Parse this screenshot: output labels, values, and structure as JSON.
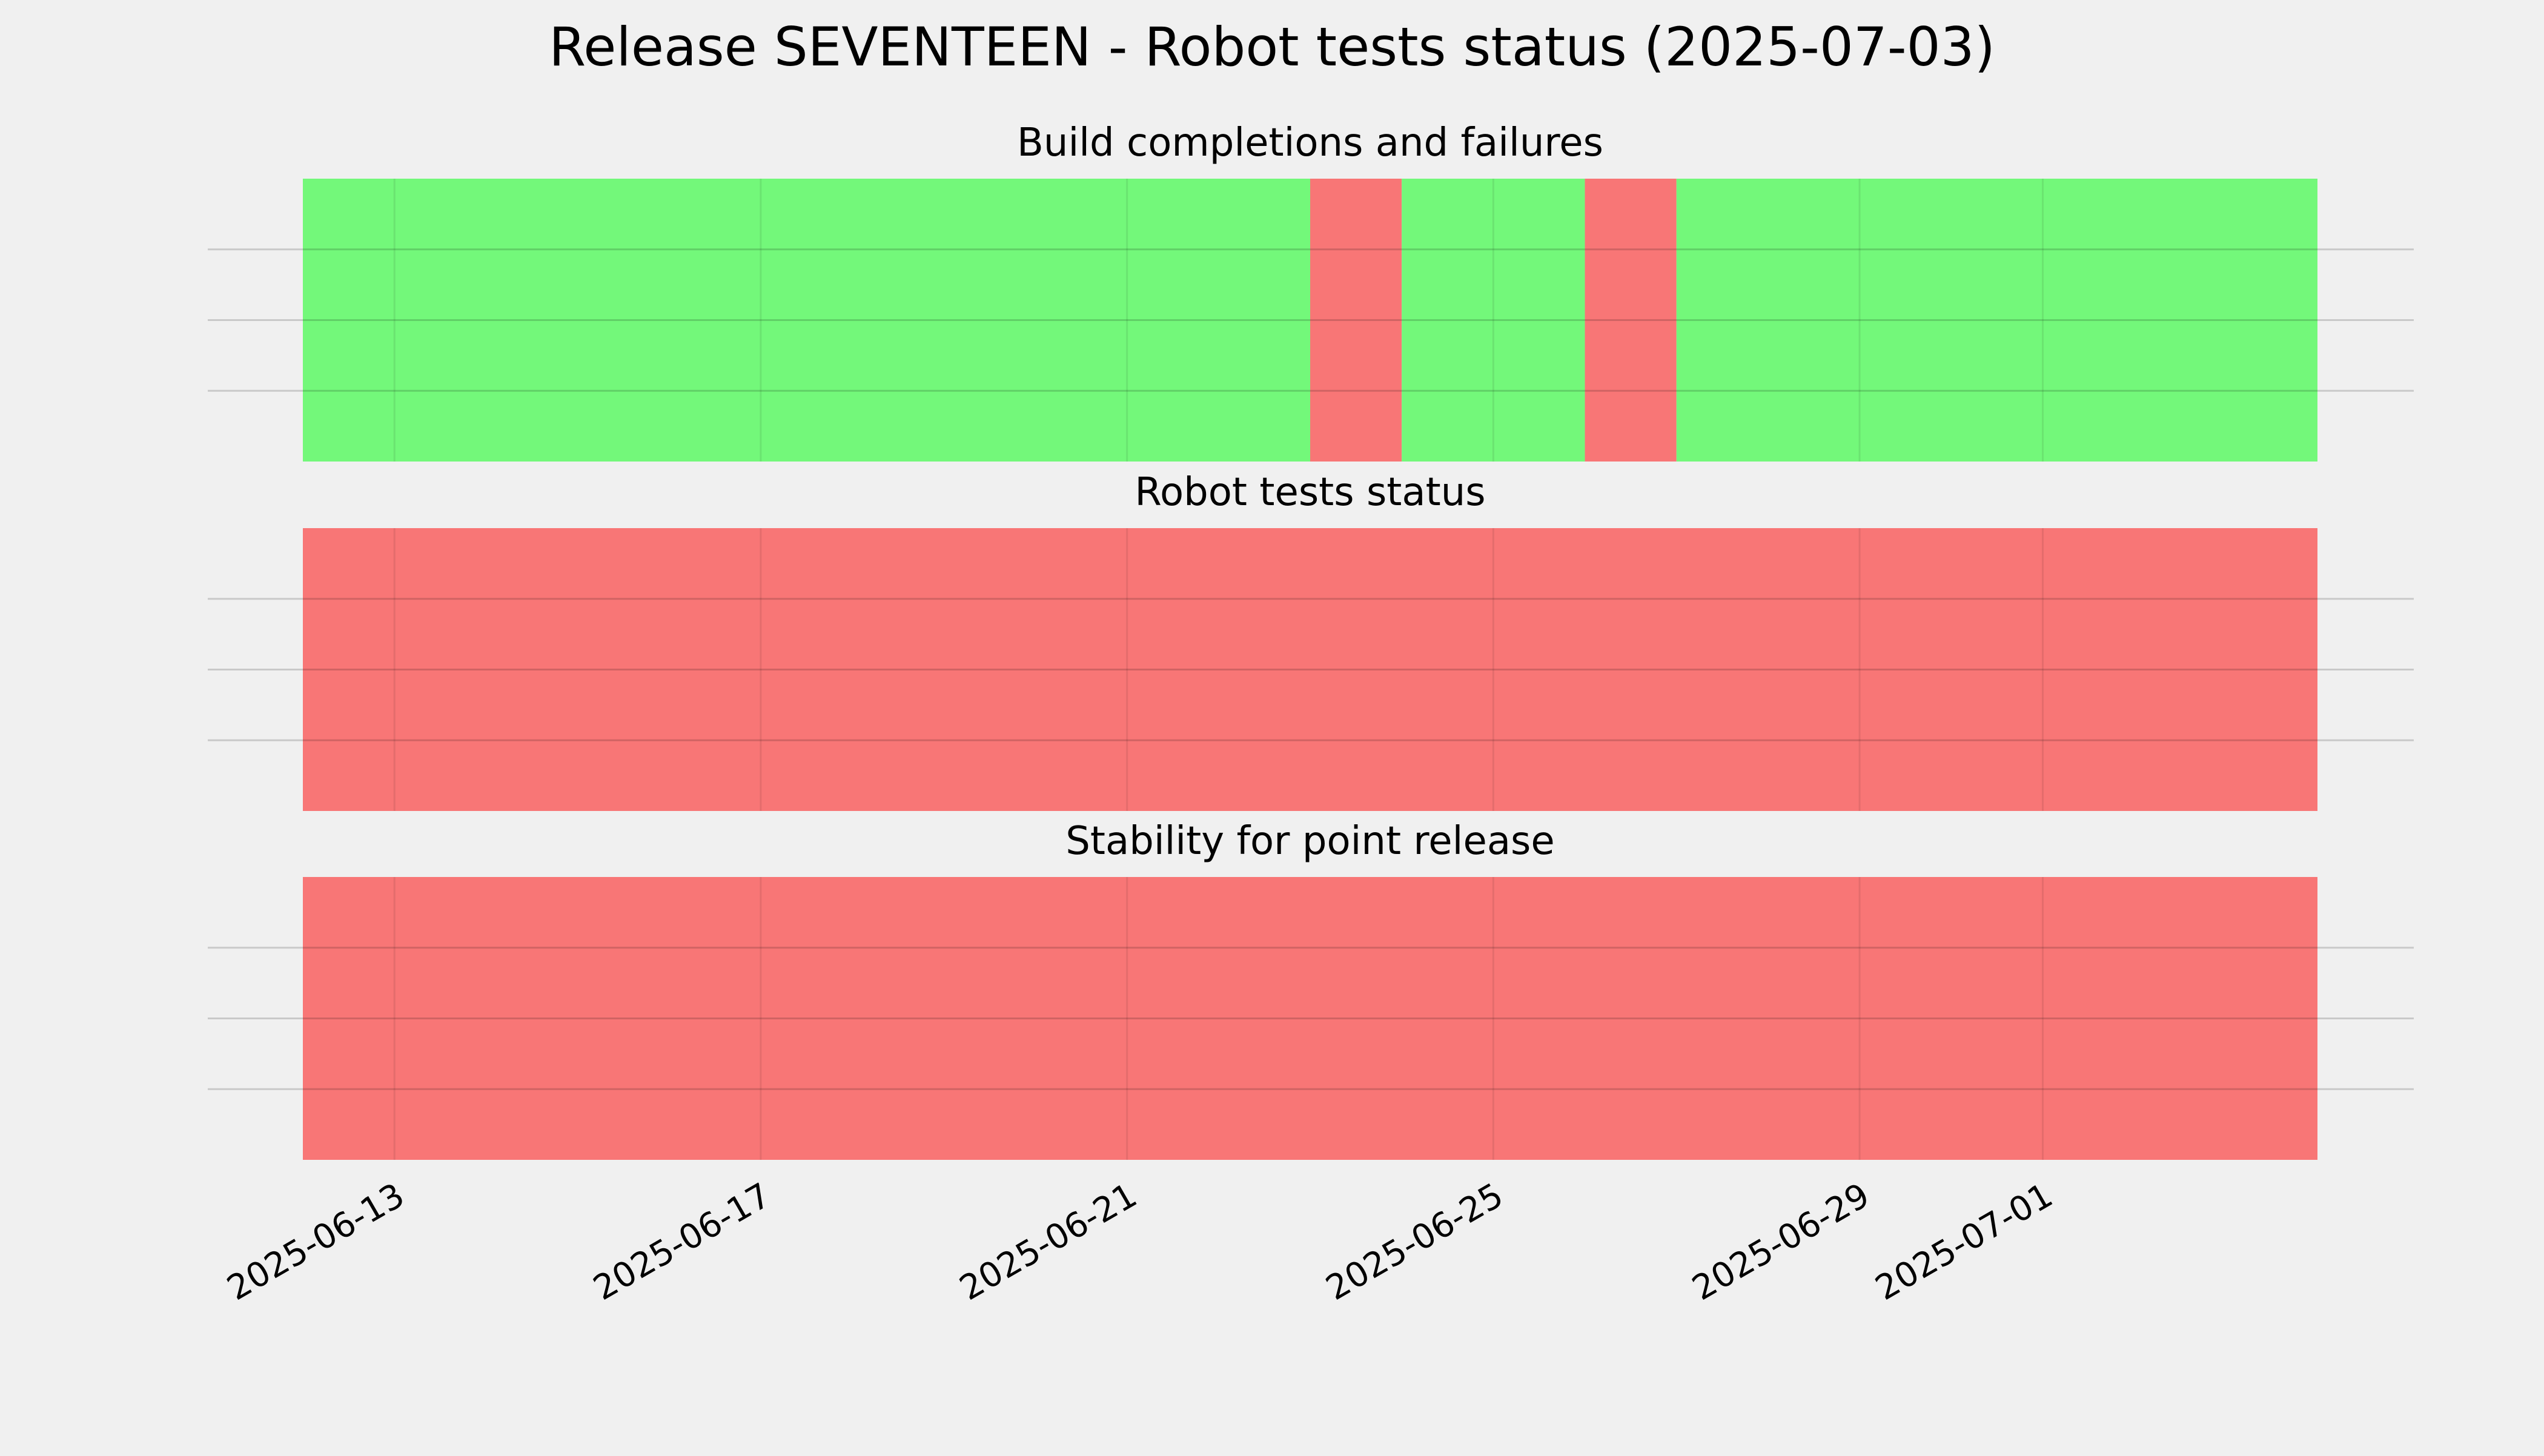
{
  "chart_data": {
    "type": "timeline",
    "title": "Release SEVENTEEN - Robot tests status (2025-07-03)",
    "x_range": [
      "2025-06-12",
      "2025-07-04"
    ],
    "x_ticks": [
      "2025-06-13",
      "2025-06-17",
      "2025-06-21",
      "2025-06-25",
      "2025-06-29",
      "2025-07-01"
    ],
    "grid": true,
    "colors": {
      "pass": "#73f87a",
      "fail": "#f87676",
      "background": "#f0f0f0"
    },
    "panels": [
      {
        "title": "Build completions and failures",
        "segments": [
          {
            "start": "2025-06-12",
            "end": "2025-06-23",
            "status": "pass"
          },
          {
            "start": "2025-06-23",
            "end": "2025-06-24",
            "status": "fail"
          },
          {
            "start": "2025-06-24",
            "end": "2025-06-26",
            "status": "pass"
          },
          {
            "start": "2025-06-26",
            "end": "2025-06-27",
            "status": "fail"
          },
          {
            "start": "2025-06-27",
            "end": "2025-07-04",
            "status": "pass"
          }
        ]
      },
      {
        "title": "Robot tests status",
        "segments": [
          {
            "start": "2025-06-12",
            "end": "2025-07-04",
            "status": "fail"
          }
        ]
      },
      {
        "title": "Stability for point release",
        "segments": [
          {
            "start": "2025-06-12",
            "end": "2025-07-04",
            "status": "fail"
          }
        ]
      }
    ]
  }
}
